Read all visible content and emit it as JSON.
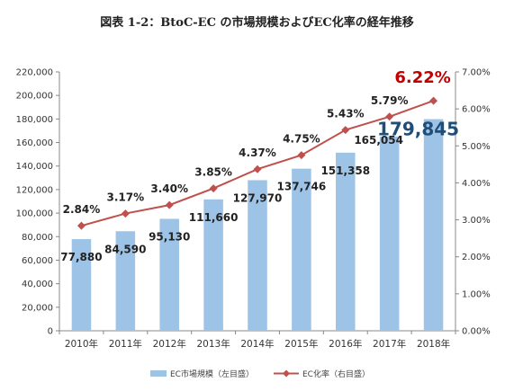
{
  "title": "図表 1-2：BtoC-EC の市場規模およびEC化率の経年推移",
  "colors": {
    "bar": "#9dc3e6",
    "line": "#c0504d",
    "axis": "#888888",
    "grid": "#d9d9d9",
    "big_value": "#1f4e79",
    "big_pct": "#c00000"
  },
  "chart_data": {
    "type": "bar+line",
    "categories": [
      "2010年",
      "2011年",
      "2012年",
      "2013年",
      "2014年",
      "2015年",
      "2016年",
      "2017年",
      "2018年"
    ],
    "series": [
      {
        "name": "EC市場規模（左目盛）",
        "type": "bar",
        "axis": "left",
        "values": [
          77880,
          84590,
          95130,
          111660,
          127970,
          137746,
          151358,
          165054,
          179845
        ],
        "labels": [
          "77,880",
          "84,590",
          "95,130",
          "111,660",
          "127,970",
          "137,746",
          "151,358",
          "165,054",
          "179,845"
        ]
      },
      {
        "name": "EC化率（右目盛）",
        "type": "line",
        "axis": "right",
        "values": [
          2.84,
          3.17,
          3.4,
          3.85,
          4.37,
          4.75,
          5.43,
          5.79,
          6.22
        ],
        "labels": [
          "2.84%",
          "3.17%",
          "3.40%",
          "3.85%",
          "4.37%",
          "4.75%",
          "5.43%",
          "5.79%",
          "6.22%"
        ]
      }
    ],
    "y_left": {
      "min": 0,
      "max": 220000,
      "step": 20000,
      "ticks": [
        "0",
        "20,000",
        "40,000",
        "60,000",
        "80,000",
        "100,000",
        "120,000",
        "140,000",
        "160,000",
        "180,000",
        "200,000",
        "220,000"
      ]
    },
    "y_right": {
      "min": 0,
      "max": 7,
      "step": 1,
      "ticks": [
        "0.00%",
        "1.00%",
        "2.00%",
        "3.00%",
        "4.00%",
        "5.00%",
        "6.00%",
        "7.00%"
      ]
    },
    "grid": false,
    "legend": "bottom"
  }
}
